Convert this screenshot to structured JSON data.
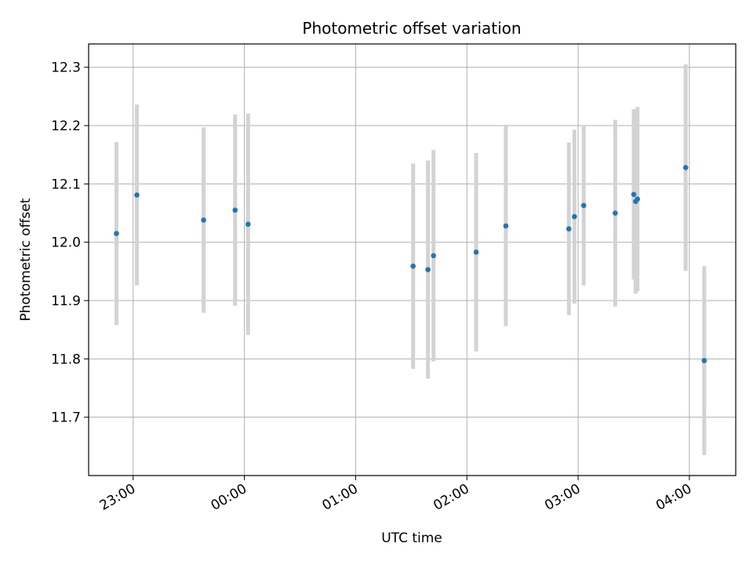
{
  "chart_data": {
    "type": "scatter",
    "title": "Photometric offset variation",
    "xlabel": "UTC time",
    "ylabel": "Photometric offset",
    "x_axis": "time",
    "x_start_date": "",
    "xlim": [
      "22:36",
      "04:25"
    ],
    "ylim": [
      11.6,
      12.34
    ],
    "grid": true,
    "x_ticks": [
      "23:00",
      "00:00",
      "01:00",
      "02:00",
      "03:00",
      "04:00"
    ],
    "y_ticks": [
      "11.7",
      "11.8",
      "11.9",
      "12.0",
      "12.1",
      "12.2",
      "12.3"
    ],
    "errorbar_color": "#d3d3d3",
    "marker_color": "#1f77b4",
    "series": [
      {
        "points": [
          {
            "x": "22:51",
            "y": 12.015,
            "yerr": 0.157
          },
          {
            "x": "23:02",
            "y": 12.081,
            "yerr": 0.155
          },
          {
            "x": "23:38",
            "y": 12.038,
            "yerr": 0.159
          },
          {
            "x": "23:55",
            "y": 12.055,
            "yerr": 0.164
          },
          {
            "x": "00:02",
            "y": 12.031,
            "yerr": 0.19
          },
          {
            "x": "01:31",
            "y": 11.959,
            "yerr": 0.176
          },
          {
            "x": "01:39",
            "y": 11.953,
            "yerr": 0.187
          },
          {
            "x": "01:42",
            "y": 11.977,
            "yerr": 0.181
          },
          {
            "x": "02:05",
            "y": 11.983,
            "yerr": 0.17
          },
          {
            "x": "02:21",
            "y": 12.028,
            "yerr": 0.172
          },
          {
            "x": "02:55",
            "y": 12.023,
            "yerr": 0.148
          },
          {
            "x": "02:58",
            "y": 12.044,
            "yerr": 0.149
          },
          {
            "x": "03:03",
            "y": 12.063,
            "yerr": 0.137
          },
          {
            "x": "03:20",
            "y": 12.05,
            "yerr": 0.16
          },
          {
            "x": "03:30",
            "y": 12.082,
            "yerr": 0.146
          },
          {
            "x": "03:31",
            "y": 12.07,
            "yerr": 0.158
          },
          {
            "x": "03:32",
            "y": 12.074,
            "yerr": 0.158
          },
          {
            "x": "03:58",
            "y": 12.128,
            "yerr": 0.177
          },
          {
            "x": "04:08",
            "y": 11.797,
            "yerr": 0.162
          }
        ]
      }
    ]
  }
}
